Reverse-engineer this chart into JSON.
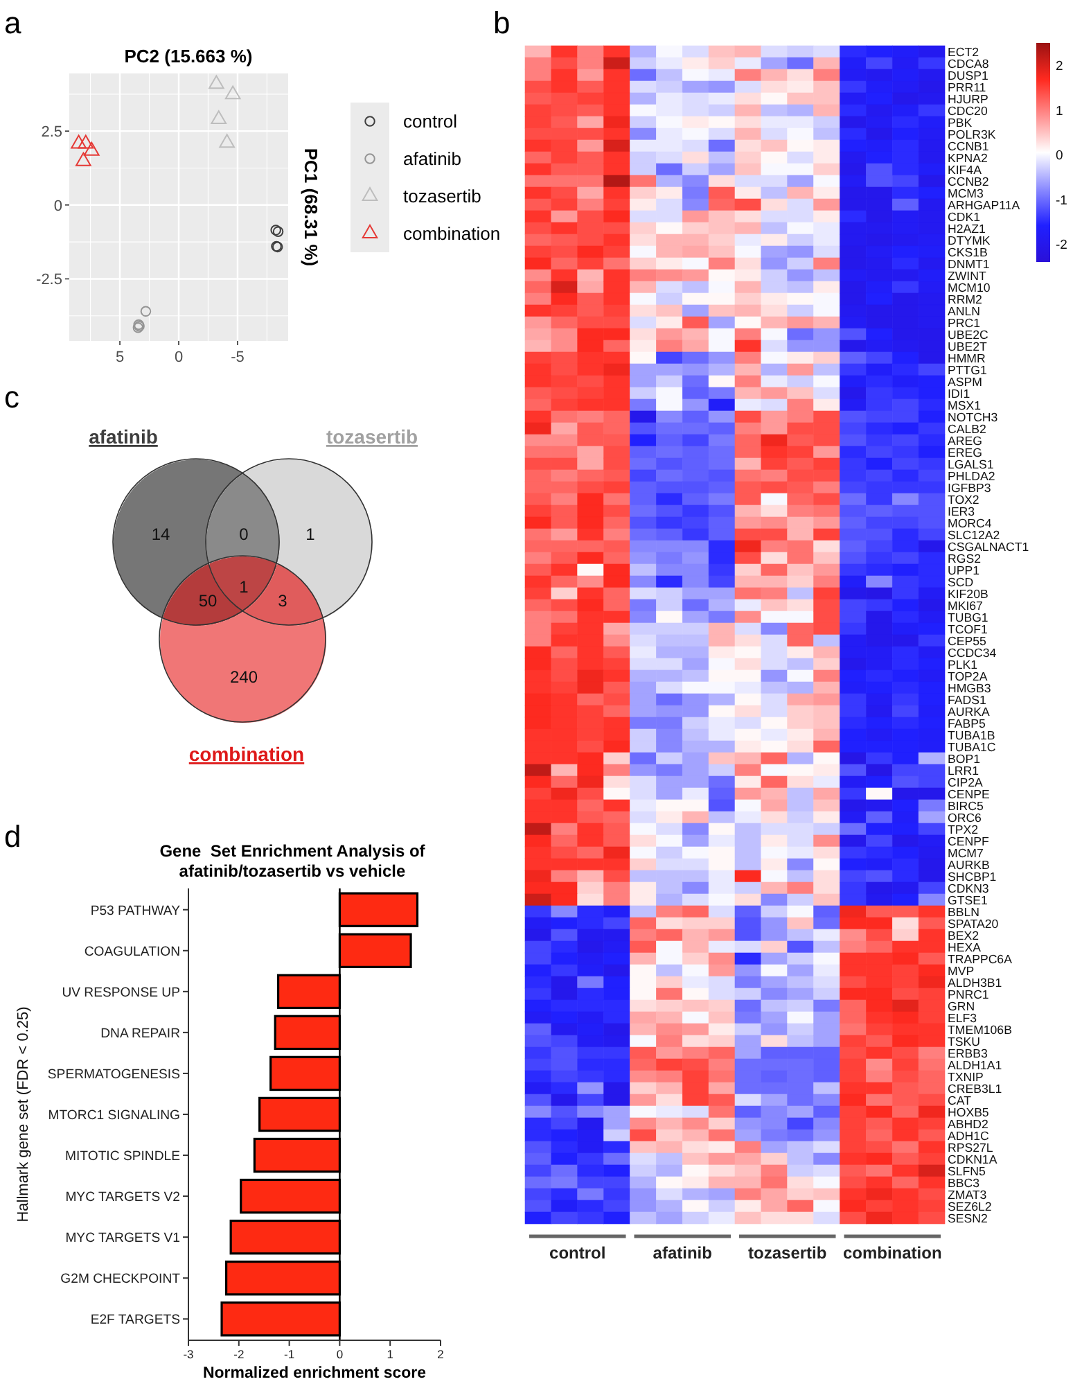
{
  "chart_data": [
    {
      "type": "scatter",
      "xlabel": "PC2 (15.663 %)",
      "ylabel": "PC1 (68.31 %)",
      "annotations": [
        "a"
      ],
      "xlim": [
        9.3,
        -9.3
      ],
      "ylim": [
        -4.6,
        4.45
      ],
      "xticks": [
        5,
        0,
        -5
      ],
      "yticks": [
        -2.5,
        0,
        2.5
      ],
      "grid": true,
      "legend": "right",
      "series": [
        {
          "name": "control",
          "color": "#3f3f3f",
          "marker": "circle",
          "x": [
            -8.25,
            -8.45,
            -8.3,
            -8.4
          ],
          "values": [
            -0.85,
            -0.9,
            -1.4,
            -1.42
          ]
        },
        {
          "name": "afatinib",
          "color": "#959595",
          "marker": "circle",
          "x": [
            2.8,
            3.35,
            3.45,
            3.4
          ],
          "values": [
            -3.6,
            -4.1,
            -4.15,
            -4.05
          ]
        },
        {
          "name": "tozasertib",
          "color": "#bdbdbd",
          "marker": "triangle",
          "x": [
            -3.2,
            -4.6,
            -3.4,
            -4.1
          ],
          "values": [
            4.09,
            3.74,
            2.9,
            2.1
          ]
        },
        {
          "name": "combination",
          "color": "#e53935",
          "marker": "triangle",
          "x": [
            8.5,
            7.9,
            7.4,
            8.1
          ],
          "values": [
            2.07,
            2.07,
            1.83,
            1.48
          ]
        }
      ]
    },
    {
      "type": "heatmap",
      "annotations": [
        "b",
        "control",
        "afatinib",
        "tozasertib",
        "combination"
      ],
      "categories": [
        null,
        null,
        null,
        null,
        null,
        null,
        null,
        null,
        null,
        null,
        null,
        null,
        null,
        null,
        null,
        null
      ],
      "y_categories": [
        "ECT2",
        "CDCA8",
        "DUSP1",
        "PRR11",
        "HJURP",
        "CDC20",
        "PBK",
        "POLR3K",
        "CCNB1",
        "KPNA2",
        "KIF4A",
        "CCNB2",
        "MCM3",
        "ARHGAP11A",
        "CDK1",
        "H2AZ1",
        "DTYMK",
        "CKS1B",
        "DNMT1",
        "ZWINT",
        "MCM10",
        "RRM2",
        "ANLN",
        "PRC1",
        "UBE2C",
        "UBE2T",
        "HMMR",
        "PTTG1",
        "ASPM",
        "IDI1",
        "MSX1",
        "NOTCH3",
        "CALB2",
        "AREG",
        "EREG",
        "LGALS1",
        "PHLDA2",
        "IGFBP3",
        "TOX2",
        "IER3",
        "MORC4",
        "SLC12A2",
        "CSGALNACT1",
        "RGS2",
        "UPP1",
        "SCD",
        "KIF20B",
        "MKI67",
        "TUBG1",
        "TCOF1",
        "CEP55",
        "CCDC34",
        "PLK1",
        "TOP2A",
        "HMGB3",
        "FADS1",
        "AURKA",
        "FABP5",
        "TUBA1B",
        "TUBA1C",
        "BOP1",
        "LRR1",
        "CIP2A",
        "CENPE",
        "BIRC5",
        "ORC6",
        "TPX2",
        "CENPF",
        "MCM7",
        "AURKB",
        "SHCBP1",
        "CDKN3",
        "GTSE1",
        "BBLN",
        "SPATA20",
        "BEX2",
        "HEXA",
        "TRAPPC6A",
        "MVP",
        "ALDH3B1",
        "PNRC1",
        "GRN",
        "ELF3",
        "TMEM106B",
        "TSKU",
        "ERBB3",
        "ALDH1A1",
        "TXNIP",
        "CREB3L1",
        "CAT",
        "HOXB5",
        "ABHD2",
        "ADH1C",
        "RPS27L",
        "CDKN1A",
        "SLFN5",
        "BBC3",
        "ZMAT3",
        "SEZ6L2",
        "SESN2"
      ],
      "cells": [
        [
          0.6,
          1.6,
          1.0,
          1.6,
          -0.5,
          0.0,
          -0.2,
          0.5,
          0.6,
          -0.2,
          -0.3,
          -0.2,
          -1.5,
          -1.6,
          -1.7,
          -1.9
        ],
        [
          1.0,
          1.4,
          1.0,
          2.1,
          -0.3,
          -0.1,
          0.2,
          0.4,
          -0.1,
          -0.6,
          -1.0,
          0.6,
          -1.7,
          -1.3,
          -1.8,
          -1.4
        ],
        [
          1.0,
          1.6,
          0.8,
          1.6,
          -1.0,
          -0.4,
          0.0,
          -0.1,
          1.0,
          0.6,
          0.3,
          1.0,
          -1.8,
          -1.9,
          -1.7,
          -1.9
        ],
        [
          1.4,
          1.6,
          1.3,
          1.6,
          -0.2,
          -0.3,
          -0.6,
          -0.7,
          -0.2,
          0.3,
          0.2,
          0.5,
          -1.4,
          -1.7,
          -1.8,
          -2.0
        ],
        [
          1.3,
          1.4,
          1.5,
          1.6,
          -0.5,
          -0.1,
          -0.2,
          -0.1,
          0.3,
          0.1,
          0.5,
          0.5,
          -1.8,
          -1.6,
          -2.0,
          -1.9
        ],
        [
          1.5,
          1.4,
          1.3,
          1.6,
          0.0,
          -0.1,
          -0.2,
          -0.3,
          0.6,
          -0.4,
          -0.5,
          0.6,
          -1.5,
          -1.9,
          -1.7,
          -1.4
        ],
        [
          1.5,
          1.3,
          0.7,
          1.8,
          -0.3,
          0.0,
          0.2,
          0.1,
          0.3,
          -0.1,
          -0.1,
          -0.3,
          -2.0,
          -1.8,
          -1.5,
          -1.7
        ],
        [
          1.4,
          1.4,
          1.4,
          1.6,
          -0.8,
          -0.1,
          0.0,
          -0.2,
          0.6,
          -0.2,
          0.0,
          -0.4,
          -1.5,
          -2.0,
          -1.6,
          -1.8
        ],
        [
          1.6,
          1.5,
          0.8,
          2.0,
          -0.1,
          -0.1,
          -0.2,
          -1.0,
          0.3,
          0.5,
          0.1,
          0.2,
          -1.6,
          -1.7,
          -1.5,
          -1.9
        ],
        [
          1.2,
          1.5,
          1.3,
          1.6,
          -0.3,
          -0.2,
          0.3,
          -0.4,
          0.4,
          0.1,
          -0.2,
          0.2,
          -1.9,
          -1.6,
          -1.5,
          -1.9
        ],
        [
          1.6,
          1.3,
          1.3,
          1.6,
          -0.3,
          -1.0,
          -0.3,
          -0.6,
          0.5,
          0.0,
          0.0,
          0.4,
          -2.0,
          -1.2,
          -1.5,
          -1.7
        ],
        [
          1.1,
          1.1,
          1.1,
          2.3,
          1.1,
          -0.5,
          -0.8,
          0.3,
          -0.2,
          -0.2,
          -0.6,
          0.0,
          -1.8,
          -1.2,
          -1.3,
          -2.0
        ],
        [
          1.6,
          1.4,
          0.7,
          1.6,
          0.4,
          0.2,
          -0.9,
          1.3,
          0.2,
          -0.4,
          0.6,
          0.2,
          -2.0,
          -2.0,
          -1.5,
          -1.6
        ],
        [
          1.3,
          1.5,
          1.0,
          1.5,
          0.2,
          -0.2,
          -0.8,
          1.2,
          1.4,
          0.3,
          -0.2,
          0.8,
          -2.0,
          -2.0,
          -1.1,
          -1.9
        ],
        [
          1.6,
          0.8,
          1.4,
          1.7,
          -0.2,
          -0.2,
          0.8,
          0.5,
          0.3,
          -0.2,
          -0.2,
          0.2,
          -1.5,
          -2.0,
          -1.8,
          -1.9
        ],
        [
          1.4,
          1.6,
          1.4,
          1.4,
          0.4,
          0.1,
          0.4,
          0.5,
          0.6,
          -0.4,
          0.0,
          -0.1,
          -1.9,
          -1.9,
          -1.8,
          -1.9
        ],
        [
          1.2,
          1.3,
          1.4,
          1.6,
          0.3,
          0.6,
          0.6,
          0.4,
          -0.1,
          0.2,
          -0.3,
          -0.1,
          -1.9,
          -2.0,
          -1.9,
          -1.8
        ],
        [
          1.5,
          1.4,
          1.7,
          1.5,
          0.0,
          0.6,
          0.7,
          0.5,
          0.0,
          -0.6,
          -0.7,
          -0.2,
          -2.0,
          -1.8,
          -1.6,
          -1.7
        ],
        [
          1.7,
          1.2,
          1.5,
          1.1,
          0.4,
          0.2,
          0.0,
          1.0,
          0.3,
          -0.7,
          -0.3,
          1.0,
          -2.0,
          -1.9,
          -1.5,
          -1.9
        ],
        [
          0.9,
          1.6,
          0.6,
          1.6,
          1.0,
          0.9,
          0.8,
          0.1,
          0.2,
          -0.3,
          -0.7,
          -0.4,
          -1.8,
          -1.9,
          -1.9,
          -1.7
        ],
        [
          1.2,
          2.0,
          0.7,
          1.6,
          0.6,
          -0.2,
          -0.4,
          0.0,
          0.6,
          -0.3,
          -0.4,
          0.2,
          -2.0,
          -1.7,
          -1.4,
          -1.8
        ],
        [
          1.0,
          1.7,
          1.3,
          1.6,
          0.0,
          -0.3,
          0.1,
          0.1,
          0.4,
          0.2,
          0.1,
          0.0,
          -2.0,
          -1.6,
          -2.0,
          -1.9
        ],
        [
          1.6,
          1.5,
          1.3,
          1.5,
          0.3,
          0.5,
          -0.6,
          0.5,
          0.6,
          0.3,
          -0.3,
          0.0,
          -1.9,
          -2.0,
          -2.0,
          -1.9
        ],
        [
          0.8,
          1.2,
          1.4,
          1.4,
          -0.2,
          0.2,
          1.3,
          -0.6,
          0.1,
          0.6,
          0.8,
          0.6,
          -1.8,
          -2.0,
          -2.0,
          -1.9
        ],
        [
          0.7,
          0.9,
          1.7,
          1.7,
          0.3,
          0.8,
          0.6,
          0.0,
          1.0,
          0.0,
          -1.0,
          -0.7,
          -1.2,
          -1.6,
          -2.0,
          -2.0
        ],
        [
          0.6,
          0.9,
          1.7,
          1.2,
          0.2,
          1.0,
          0.7,
          0.0,
          1.6,
          -0.2,
          -0.7,
          -0.7,
          -2.0,
          -1.8,
          -1.9,
          -2.0
        ],
        [
          1.5,
          1.4,
          1.6,
          1.6,
          0.1,
          -1.3,
          -1.0,
          -0.7,
          1.0,
          0.0,
          0.2,
          0.4,
          -1.1,
          -1.3,
          -1.6,
          -2.0
        ],
        [
          1.6,
          1.4,
          1.6,
          1.8,
          -0.6,
          -0.6,
          -0.7,
          -0.5,
          0.6,
          -0.5,
          0.8,
          -0.4,
          -1.4,
          -1.7,
          -1.5,
          -1.3
        ],
        [
          1.6,
          1.5,
          1.4,
          1.6,
          -0.6,
          -0.3,
          -1.0,
          0.1,
          1.0,
          -0.1,
          -0.3,
          0.0,
          -1.7,
          -1.5,
          -1.7,
          -1.6
        ],
        [
          1.3,
          1.4,
          1.5,
          1.6,
          -0.3,
          0.0,
          -1.1,
          -0.9,
          0.6,
          0.8,
          0.5,
          -0.2,
          -2.0,
          -1.4,
          -1.5,
          -1.6
        ],
        [
          1.2,
          1.5,
          1.6,
          1.6,
          -0.9,
          0.0,
          -0.7,
          -1.7,
          -0.1,
          -0.2,
          1.0,
          0.2,
          -1.8,
          -1.4,
          -1.3,
          -1.5
        ],
        [
          1.6,
          1.1,
          1.0,
          1.2,
          -2.0,
          -0.8,
          -1.1,
          -0.7,
          1.4,
          0.8,
          1.0,
          1.4,
          -1.2,
          -1.3,
          -1.3,
          -1.6
        ],
        [
          1.8,
          0.7,
          1.3,
          1.2,
          -1.2,
          -1.0,
          -1.0,
          -1.1,
          1.0,
          0.8,
          1.4,
          1.4,
          -1.3,
          -1.5,
          -1.6,
          -1.4
        ],
        [
          0.9,
          0.9,
          1.3,
          1.3,
          -1.6,
          -1.1,
          -1.3,
          -0.9,
          1.2,
          1.8,
          1.3,
          1.4,
          -1.2,
          -1.4,
          -1.3,
          -1.5
        ],
        [
          1.1,
          1.1,
          0.7,
          1.4,
          -1.1,
          -1.0,
          -1.1,
          -1.0,
          1.2,
          1.6,
          1.5,
          0.8,
          -1.5,
          -1.3,
          -1.4,
          -1.6
        ],
        [
          1.4,
          1.4,
          0.7,
          1.4,
          -1.0,
          -1.2,
          -1.1,
          -1.0,
          0.6,
          1.5,
          1.3,
          1.5,
          -1.4,
          -1.6,
          -1.3,
          -1.4
        ],
        [
          1.2,
          1.0,
          1.2,
          1.3,
          -1.3,
          -1.0,
          -1.1,
          -1.2,
          1.1,
          1.0,
          1.4,
          1.4,
          -1.4,
          -1.3,
          -1.5,
          -1.3
        ],
        [
          1.2,
          1.2,
          1.4,
          1.5,
          -1.1,
          -1.2,
          -1.2,
          -1.1,
          1.3,
          1.4,
          1.3,
          1.0,
          -1.3,
          -1.4,
          -1.4,
          -1.4
        ],
        [
          1.3,
          1.0,
          1.7,
          1.1,
          -1.1,
          -1.5,
          -1.1,
          -0.9,
          1.3,
          0.0,
          1.2,
          1.4,
          -1.0,
          -1.4,
          -0.8,
          -1.2
        ],
        [
          1.5,
          1.3,
          1.7,
          1.4,
          -1.0,
          -1.2,
          -1.4,
          -1.2,
          0.6,
          0.3,
          1.0,
          1.1,
          -1.2,
          -1.1,
          -1.2,
          -1.2
        ],
        [
          1.7,
          1.3,
          1.7,
          1.2,
          -1.2,
          -1.4,
          -1.3,
          -1.1,
          0.8,
          0.9,
          0.6,
          0.8,
          -1.1,
          -1.3,
          -1.3,
          -1.2
        ],
        [
          1.1,
          0.8,
          1.6,
          1.0,
          -1.0,
          -1.1,
          -1.4,
          -1.1,
          1.4,
          1.4,
          0.6,
          1.5,
          -1.2,
          -1.2,
          -1.5,
          -1.3
        ],
        [
          1.2,
          1.2,
          1.2,
          1.3,
          -0.8,
          -0.8,
          -0.8,
          -1.5,
          1.8,
          1.0,
          1.1,
          0.3,
          -1.1,
          -1.3,
          -1.5,
          -2.0
        ],
        [
          1.0,
          1.3,
          1.7,
          1.2,
          -0.7,
          -0.9,
          -0.7,
          -1.5,
          1.4,
          0.3,
          1.1,
          0.5,
          -1.2,
          -1.4,
          -1.3,
          -1.5
        ],
        [
          1.3,
          1.6,
          0.1,
          1.7,
          -0.4,
          -0.8,
          -0.8,
          -1.4,
          0.4,
          1.2,
          0.5,
          0.8,
          -1.4,
          -1.5,
          -1.6,
          -1.5
        ],
        [
          1.6,
          1.2,
          0.9,
          1.7,
          -0.8,
          -1.5,
          -0.8,
          -1.3,
          0.6,
          0.6,
          0.4,
          1.0,
          -1.7,
          -0.8,
          -1.4,
          -1.5
        ],
        [
          1.5,
          0.4,
          1.6,
          1.2,
          -0.2,
          -0.3,
          -0.6,
          -0.6,
          1.1,
          1.0,
          -0.4,
          1.5,
          -2.0,
          -2.1,
          -1.4,
          -1.8
        ],
        [
          1.2,
          1.4,
          1.7,
          1.2,
          -0.9,
          -0.3,
          -1.0,
          -0.5,
          -0.1,
          0.5,
          0.3,
          1.4,
          -1.3,
          -1.4,
          -1.6,
          -2.0
        ],
        [
          1.0,
          1.1,
          1.6,
          1.6,
          -0.8,
          0.1,
          -0.6,
          -0.9,
          0.9,
          0.0,
          0.0,
          1.4,
          -1.3,
          -2.0,
          -1.5,
          -1.8
        ],
        [
          1.0,
          1.5,
          1.6,
          0.7,
          -0.3,
          -0.3,
          -0.3,
          0.6,
          -0.2,
          -0.8,
          1.2,
          1.4,
          -1.4,
          -2.0,
          -1.7,
          -1.6
        ],
        [
          1.0,
          1.6,
          1.6,
          0.9,
          -0.2,
          -0.4,
          -0.4,
          0.6,
          0.3,
          -0.2,
          1.2,
          -0.4,
          -1.8,
          -2.0,
          -2.0,
          -1.4
        ],
        [
          1.7,
          1.2,
          1.6,
          1.3,
          -0.1,
          -0.5,
          -0.5,
          0.2,
          0.1,
          -0.2,
          0.2,
          0.6,
          -1.8,
          -1.8,
          -1.5,
          -1.8
        ],
        [
          1.7,
          1.4,
          1.6,
          1.5,
          -0.2,
          -0.2,
          -0.6,
          0.0,
          0.3,
          -0.2,
          -0.4,
          0.4,
          -2.0,
          -1.8,
          -1.5,
          -1.6
        ],
        [
          1.6,
          1.4,
          1.8,
          1.6,
          -0.5,
          -0.5,
          -0.4,
          0.1,
          0.1,
          -0.7,
          0.0,
          1.0,
          -1.6,
          -1.5,
          -1.6,
          -1.8
        ],
        [
          1.6,
          1.5,
          1.8,
          1.3,
          -0.6,
          -0.2,
          0.0,
          0.0,
          -0.1,
          -0.4,
          -0.5,
          0.6,
          -1.7,
          -1.6,
          -1.5,
          -1.6
        ],
        [
          1.7,
          1.6,
          1.2,
          1.4,
          -0.6,
          -1.0,
          -0.7,
          -0.5,
          0.1,
          -0.2,
          0.7,
          0.8,
          -1.4,
          -1.8,
          -1.4,
          -1.6
        ],
        [
          1.7,
          1.6,
          1.5,
          1.2,
          -0.6,
          -0.7,
          -0.7,
          0.1,
          0.3,
          -0.2,
          0.4,
          0.5,
          -1.4,
          -1.9,
          -1.3,
          -1.7
        ],
        [
          1.7,
          1.6,
          1.5,
          1.6,
          -0.9,
          -0.9,
          -0.3,
          -0.1,
          -0.2,
          0.1,
          0.4,
          0.5,
          -1.5,
          -1.6,
          -1.5,
          -1.6
        ],
        [
          1.6,
          1.6,
          1.5,
          1.6,
          -0.3,
          -0.8,
          -0.4,
          -0.1,
          0.1,
          -0.1,
          0.2,
          0.6,
          -1.6,
          -1.8,
          -1.6,
          -1.7
        ],
        [
          1.6,
          1.6,
          1.4,
          1.7,
          -0.3,
          -0.8,
          -0.5,
          -0.5,
          0.2,
          0.1,
          0.3,
          1.2,
          -1.6,
          -1.6,
          -1.6,
          -1.7
        ],
        [
          1.6,
          1.6,
          1.7,
          0.4,
          -1.0,
          -0.3,
          -0.6,
          0.5,
          0.6,
          1.2,
          -0.5,
          0.1,
          -2.1,
          -1.4,
          -1.6,
          -0.5
        ],
        [
          2.2,
          0.6,
          1.7,
          1.0,
          -0.7,
          -0.9,
          -0.6,
          -0.3,
          1.0,
          0.0,
          0.1,
          0.2,
          -1.2,
          -2.1,
          -1.3,
          -1.3
        ],
        [
          1.7,
          1.2,
          1.8,
          0.3,
          -0.2,
          -0.6,
          -0.6,
          -1.0,
          0.2,
          1.2,
          0.3,
          -0.1,
          -1.8,
          -1.6,
          -1.2,
          -1.3
        ],
        [
          1.5,
          1.8,
          1.4,
          0.1,
          -0.2,
          -0.6,
          -0.1,
          -1.1,
          0.8,
          0.6,
          -0.4,
          0.7,
          -1.4,
          0.1,
          -2.0,
          -2.0
        ],
        [
          1.6,
          1.6,
          1.2,
          1.6,
          -0.1,
          0.1,
          0.1,
          -1.2,
          0.0,
          0.7,
          -0.4,
          0.5,
          -2.0,
          -1.9,
          -1.6,
          -0.9
        ],
        [
          1.6,
          1.6,
          1.3,
          1.2,
          -0.2,
          0.2,
          0.6,
          -0.4,
          -0.1,
          0.3,
          -0.3,
          0.2,
          -1.8,
          -1.1,
          -1.7,
          -0.6
        ],
        [
          2.2,
          1.0,
          1.6,
          1.3,
          0.0,
          -0.2,
          -0.8,
          0.1,
          -0.4,
          -0.2,
          -0.2,
          -0.3,
          -1.0,
          -1.6,
          -1.6,
          -1.3
        ],
        [
          1.7,
          1.2,
          1.6,
          1.3,
          0.3,
          0.0,
          -0.6,
          -0.1,
          -0.4,
          0.2,
          -0.2,
          0.9,
          -2.0,
          -1.3,
          -2.0,
          -1.8
        ],
        [
          1.6,
          1.4,
          1.2,
          1.8,
          0.0,
          -0.3,
          0.0,
          0.1,
          -0.4,
          0.0,
          -0.1,
          0.3,
          -1.4,
          -1.5,
          -1.6,
          -1.9
        ],
        [
          1.6,
          1.6,
          1.6,
          1.6,
          0.4,
          -0.2,
          -0.2,
          0.1,
          -0.4,
          0.2,
          -0.8,
          0.1,
          -1.6,
          -1.7,
          -1.5,
          -2.0
        ],
        [
          1.8,
          1.0,
          0.6,
          1.4,
          -0.4,
          -0.4,
          -0.4,
          -0.1,
          1.7,
          0.0,
          -0.4,
          0.3,
          -1.3,
          -1.2,
          -1.5,
          -2.0
        ],
        [
          1.7,
          1.7,
          0.4,
          1.0,
          0.2,
          -0.4,
          -0.8,
          -0.1,
          -0.3,
          0.6,
          1.0,
          0.3,
          -1.4,
          -2.0,
          -1.9,
          -1.3
        ],
        [
          2.1,
          1.7,
          0.3,
          1.0,
          0.2,
          -0.5,
          -0.2,
          0.0,
          0.3,
          -0.8,
          -0.3,
          0.5,
          -1.4,
          -1.9,
          -1.6,
          -0.8
        ],
        [
          -1.4,
          -0.8,
          -1.5,
          -1.7,
          -0.4,
          1.0,
          1.2,
          -0.2,
          -1.1,
          -0.3,
          0.0,
          -1.1,
          1.8,
          1.3,
          1.3,
          1.6
        ],
        [
          -1.8,
          -1.6,
          -1.5,
          -1.3,
          1.2,
          0.3,
          0.4,
          0.4,
          -1.2,
          -0.7,
          0.5,
          -1.0,
          1.7,
          1.7,
          0.3,
          1.3
        ],
        [
          -2.0,
          -1.2,
          -1.9,
          -1.9,
          1.0,
          1.2,
          0.6,
          0.8,
          -1.2,
          -0.7,
          -0.4,
          -0.1,
          0.9,
          1.4,
          0.4,
          1.6
        ],
        [
          -1.3,
          -1.5,
          -2.0,
          -1.8,
          1.3,
          0.0,
          0.6,
          -0.1,
          -0.2,
          0.4,
          -1.2,
          -0.4,
          1.0,
          1.2,
          1.6,
          1.6
        ],
        [
          -1.3,
          -1.6,
          -1.8,
          -1.6,
          0.6,
          0.0,
          0.4,
          0.9,
          -1.5,
          -0.6,
          -0.3,
          0.0,
          1.6,
          1.6,
          1.7,
          1.3
        ],
        [
          -1.6,
          -1.4,
          -1.7,
          -2.0,
          0.1,
          -0.4,
          0.0,
          0.8,
          -0.7,
          0.0,
          -0.6,
          -0.1,
          1.6,
          1.6,
          1.5,
          1.7
        ],
        [
          -1.5,
          -2.0,
          -0.9,
          -1.6,
          0.1,
          0.4,
          -0.1,
          -0.2,
          -0.9,
          -0.6,
          -0.4,
          -0.2,
          1.4,
          1.6,
          1.5,
          1.8
        ],
        [
          -1.4,
          -2.0,
          -1.5,
          -1.6,
          0.1,
          1.1,
          0.1,
          -0.2,
          -0.3,
          -0.8,
          -0.6,
          -0.3,
          1.7,
          1.7,
          1.4,
          1.5
        ],
        [
          -1.6,
          -1.5,
          -1.5,
          -1.5,
          0.3,
          0.4,
          0.5,
          0.4,
          -1.0,
          -0.4,
          -0.3,
          -0.9,
          1.2,
          1.7,
          1.9,
          1.5
        ],
        [
          -1.8,
          -1.6,
          -1.8,
          -1.5,
          0.7,
          0.6,
          0.0,
          0.5,
          -0.9,
          -0.6,
          0.0,
          -0.6,
          1.2,
          1.6,
          1.7,
          1.5
        ],
        [
          -1.1,
          -1.9,
          -1.7,
          -2.0,
          0.6,
          0.9,
          0.8,
          0.2,
          -0.3,
          -0.7,
          -0.3,
          -0.6,
          1.1,
          1.5,
          1.6,
          1.6
        ],
        [
          -1.2,
          -1.3,
          -1.8,
          -1.9,
          0.0,
          1.0,
          0.3,
          0.4,
          -0.6,
          0.3,
          -0.4,
          -0.6,
          1.5,
          1.3,
          1.7,
          1.6
        ],
        [
          -1.4,
          -1.2,
          -1.4,
          -1.4,
          1.3,
          0.8,
          1.0,
          1.2,
          -0.6,
          -1.1,
          -1.1,
          -1.1,
          1.4,
          1.6,
          1.4,
          1.0
        ],
        [
          -1.3,
          -1.2,
          -1.5,
          -1.5,
          1.2,
          1.5,
          1.4,
          1.0,
          -1.0,
          -1.0,
          -1.0,
          -1.1,
          1.5,
          0.9,
          1.5,
          1.1
        ],
        [
          -1.5,
          -1.3,
          -1.4,
          -1.5,
          0.9,
          1.0,
          1.5,
          1.1,
          -1.0,
          -1.1,
          -1.0,
          -1.1,
          1.5,
          1.0,
          1.4,
          1.2
        ],
        [
          -1.8,
          -1.5,
          -0.7,
          -2.0,
          0.4,
          0.6,
          1.5,
          0.7,
          -1.0,
          -1.0,
          -1.0,
          -0.4,
          1.6,
          1.6,
          1.3,
          1.2
        ],
        [
          -1.2,
          -2.0,
          -1.3,
          -2.0,
          0.8,
          0.3,
          1.5,
          1.3,
          -0.2,
          -0.6,
          -1.0,
          -0.8,
          1.7,
          1.1,
          1.3,
          1.4
        ],
        [
          -0.8,
          -1.2,
          -0.8,
          -0.6,
          0.0,
          -0.1,
          -0.2,
          1.1,
          -1.1,
          -0.8,
          -0.6,
          -1.1,
          1.5,
          1.7,
          1.2,
          1.8
        ],
        [
          -1.5,
          -1.3,
          -1.9,
          -0.6,
          0.9,
          0.6,
          0.9,
          0.4,
          -0.7,
          -0.8,
          -1.3,
          -0.8,
          1.5,
          1.3,
          1.6,
          1.5
        ],
        [
          -1.5,
          -1.6,
          -1.8,
          -0.3,
          1.4,
          0.4,
          0.6,
          1.1,
          -0.6,
          -0.9,
          -1.0,
          -0.7,
          1.5,
          1.2,
          1.6,
          1.3
        ],
        [
          -1.2,
          -1.5,
          -1.8,
          -1.5,
          0.5,
          0.6,
          0.3,
          0.2,
          1.0,
          -0.6,
          -0.4,
          -0.2,
          1.5,
          1.4,
          1.1,
          1.6
        ],
        [
          -1.1,
          -1.6,
          -1.4,
          -1.0,
          -0.2,
          -0.4,
          0.5,
          0.8,
          0.7,
          0.4,
          -0.4,
          -0.8,
          1.6,
          1.7,
          1.3,
          1.5
        ],
        [
          -1.3,
          -1.0,
          -1.5,
          -1.6,
          -0.3,
          -0.5,
          0.1,
          0.3,
          0.5,
          1.0,
          -0.3,
          -0.2,
          1.3,
          1.1,
          1.6,
          2.0
        ],
        [
          -1.0,
          -0.9,
          -1.3,
          -1.3,
          -0.5,
          0.1,
          0.2,
          0.6,
          0.6,
          1.1,
          0.3,
          0.0,
          1.4,
          1.6,
          1.2,
          1.6
        ],
        [
          -1.3,
          -1.5,
          -0.9,
          -1.4,
          -0.7,
          -0.2,
          -0.5,
          -0.6,
          1.0,
          0.7,
          0.4,
          0.5,
          1.6,
          1.8,
          1.6,
          1.4
        ],
        [
          -1.2,
          -1.7,
          -1.5,
          -1.3,
          -0.7,
          -0.5,
          0.1,
          -0.3,
          0.2,
          0.7,
          1.2,
          0.0,
          1.7,
          1.5,
          1.6,
          1.5
        ],
        [
          -1.6,
          -1.3,
          -1.4,
          -1.6,
          -0.4,
          -0.6,
          -0.3,
          -0.1,
          0.5,
          0.3,
          0.3,
          -0.2,
          1.4,
          1.8,
          1.6,
          1.4
        ]
      ],
      "clim": [
        -2.4,
        2.5
      ],
      "cticks": [
        -2,
        -1,
        0,
        1,
        2
      ],
      "colors": [
        "#2a10d8",
        "#2020ff",
        "#8c8cff",
        "#ffffff",
        "#ff9090",
        "#ff2a20",
        "#9b1212"
      ]
    },
    {
      "type": "other",
      "annotations": [
        "c",
        "afatinib",
        "tozasertib",
        "combination"
      ],
      "categories": [
        null,
        null,
        null,
        null,
        null,
        null,
        null
      ],
      "values": [
        14,
        0,
        1,
        1,
        50,
        3,
        240
      ],
      "colors": [
        "#767676",
        "#8a8a8a",
        "#d9d9d9",
        "#bd4545",
        "#b43c3c",
        "#e05c5c",
        "#f07676"
      ],
      "data_labels": true
    },
    {
      "type": "bar",
      "orientation": "horizontal",
      "title": "Gene  Set Enrichment Analysis of\nafatinib/tozasertib vs vehicle",
      "xlabel": "Normalized enrichment score",
      "ylabel": "Hallmark gene set (FDR < 0.25)",
      "annotations": [
        "d"
      ],
      "categories": [
        "P53 PATHWAY",
        "COAGULATION",
        "UV RESPONSE UP",
        "DNA REPAIR",
        "SPERMATOGENESIS",
        "MTORC1 SIGNALING",
        "MITOTIC SPINDLE",
        "MYC TARGETS V2",
        "MYC TARGETS V1",
        "G2M CHECKPOINT",
        "E2F TARGETS"
      ],
      "values": [
        1.54,
        1.41,
        -1.22,
        -1.28,
        -1.37,
        -1.59,
        -1.69,
        -1.96,
        -2.16,
        -2.25,
        -2.34
      ],
      "color": "#fe2a12",
      "xlim": [
        -3,
        2
      ],
      "xticks": [
        -3,
        -2,
        -1,
        0,
        1,
        2
      ],
      "ref_lines": [
        {
          "axis": "x",
          "value": 0,
          "color": "#000000"
        }
      ]
    }
  ]
}
